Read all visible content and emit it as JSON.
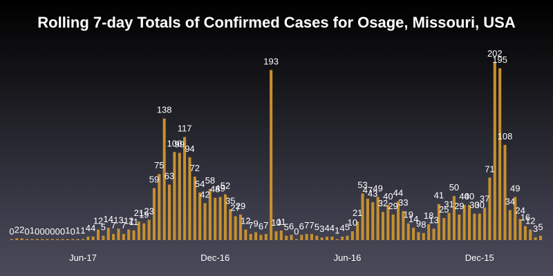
{
  "chart_data": {
    "type": "bar",
    "title": "Rolling 7-day Totals of Confirmed Cases for Osage, Missouri, USA",
    "xlabel": "",
    "ylabel": "",
    "ylim": [
      0,
      210
    ],
    "grid": false,
    "bar_color": "#c6902f",
    "values": [
      0,
      2,
      2,
      0,
      1,
      0,
      0,
      0,
      0,
      0,
      0,
      1,
      0,
      1,
      1,
      4,
      4,
      12,
      5,
      14,
      7,
      13,
      7,
      12,
      11,
      21,
      19,
      23,
      59,
      75,
      138,
      63,
      100,
      99,
      117,
      94,
      72,
      54,
      42,
      58,
      48,
      49,
      52,
      35,
      27,
      29,
      12,
      7,
      9,
      6,
      7,
      193,
      10,
      11,
      5,
      6,
      0,
      6,
      7,
      7,
      5,
      3,
      4,
      4,
      1,
      4,
      5,
      10,
      21,
      53,
      47,
      43,
      49,
      32,
      40,
      29,
      44,
      33,
      19,
      14,
      9,
      8,
      18,
      13,
      41,
      25,
      31,
      50,
      29,
      40,
      40,
      30,
      30,
      37,
      71,
      202,
      195,
      108,
      34,
      49,
      24,
      16,
      12,
      3,
      5
    ],
    "x_tick_labels": [
      {
        "label": "Jun-17",
        "index": 14
      },
      {
        "label": "Dec-16",
        "index": 40
      },
      {
        "label": "Jun-16",
        "index": 66
      },
      {
        "label": "Dec-15",
        "index": 92
      }
    ]
  }
}
